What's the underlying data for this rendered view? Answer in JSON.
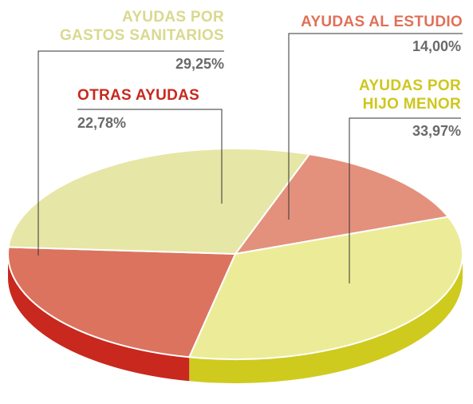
{
  "chart_data": {
    "type": "pie",
    "categories": [
      "AYUDAS AL ESTUDIO",
      "AYUDAS POR\nHIJO MENOR",
      "OTRAS AYUDAS",
      "AYUDAS POR\nGASTOS SANITARIOS"
    ],
    "values": [
      14.0,
      33.97,
      22.78,
      29.25
    ],
    "value_labels": [
      "14,00%",
      "33,97%",
      "22,78%",
      "29,25%"
    ],
    "colors": [
      "#e3917c",
      "#ecec98",
      "#dc735e",
      "#e6e6a6"
    ],
    "side_colors": [
      "#c85a48",
      "#cfca1e",
      "#c8281e",
      "#c9c566"
    ],
    "label_colors": [
      "#e07058",
      "#cfc61e",
      "#c8281e",
      "#d9d98e"
    ]
  }
}
